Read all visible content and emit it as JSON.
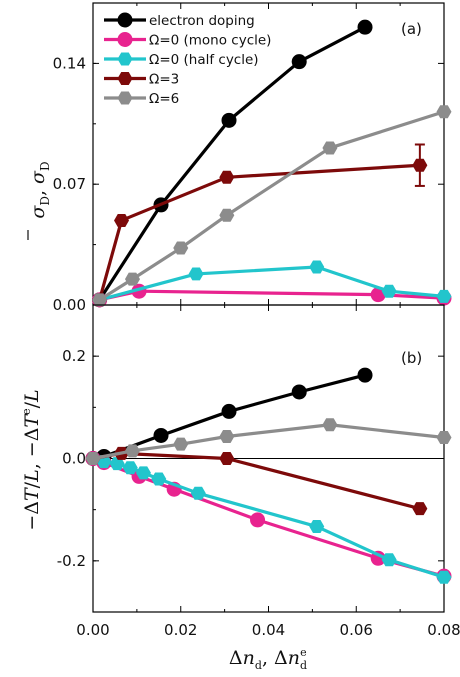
{
  "chart_data": [
    {
      "type": "line",
      "panel_label": "(a)",
      "xlim": [
        0,
        0.08
      ],
      "ylim": [
        0,
        0.175
      ],
      "yticks": [
        0.0,
        0.07,
        0.14
      ],
      "ytick_labels": [
        "0.00",
        "0.07",
        "0.14"
      ],
      "ylabel": "σ̄_D, σ_D",
      "legend_position": "top-left",
      "series": [
        {
          "name": "electron doping",
          "color": "#000000",
          "marker": "circle",
          "x": [
            0.0015,
            0.0155,
            0.031,
            0.047,
            0.062
          ],
          "y": [
            0.003,
            0.058,
            0.107,
            0.141,
            0.161
          ]
        },
        {
          "name": "Ω=0 (mono cycle)",
          "color": "#e8238f",
          "marker": "circle",
          "x": [
            0.0015,
            0.0105,
            0.065,
            0.08
          ],
          "y": [
            0.003,
            0.008,
            0.006,
            0.004
          ]
        },
        {
          "name": "Ω=0 (half cycle)",
          "color": "#22c5cc",
          "marker": "hexagon",
          "x": [
            0.0015,
            0.0235,
            0.051,
            0.0675,
            0.08
          ],
          "y": [
            0.003,
            0.018,
            0.022,
            0.008,
            0.005
          ]
        },
        {
          "name": "Ω=3",
          "color": "#7d0a0a",
          "marker": "hexagon",
          "x": [
            0.0015,
            0.0065,
            0.0305,
            0.0745
          ],
          "y": [
            0.003,
            0.049,
            0.074,
            0.081
          ],
          "yerr": [
            0,
            0,
            0,
            0.012
          ]
        },
        {
          "name": "Ω=6",
          "color": "#8c8c8c",
          "marker": "hexagon",
          "x": [
            0.0015,
            0.009,
            0.02,
            0.0305,
            0.054,
            0.08
          ],
          "y": [
            0.003,
            0.015,
            0.033,
            0.052,
            0.091,
            0.112
          ]
        }
      ]
    },
    {
      "type": "line",
      "panel_label": "(b)",
      "xlim": [
        0,
        0.08
      ],
      "ylim": [
        -0.3,
        0.3
      ],
      "yticks": [
        -0.2,
        0.0,
        0.2
      ],
      "ytick_labels": [
        "-0.2",
        "0.0",
        "0.2"
      ],
      "xticks": [
        0.0,
        0.02,
        0.04,
        0.06,
        0.08
      ],
      "xtick_labels": [
        "0.00",
        "0.02",
        "0.04",
        "0.06",
        "0.08"
      ],
      "ylabel": "−ΔT/L, −ΔT^e/L",
      "xlabel": "Δn_d, Δn_d^e",
      "zero_line": true,
      "series": [
        {
          "name": "electron doping",
          "color": "#000000",
          "marker": "circle",
          "x": [
            0.0,
            0.0025,
            0.0155,
            0.031,
            0.047,
            0.062
          ],
          "y": [
            0.0,
            0.004,
            0.045,
            0.092,
            0.13,
            0.163
          ]
        },
        {
          "name": "Ω=0 (mono cycle)",
          "color": "#e8238f",
          "marker": "circle",
          "x": [
            0.0,
            0.0025,
            0.0105,
            0.0185,
            0.0375,
            0.065,
            0.08
          ],
          "y": [
            0.0,
            -0.008,
            -0.035,
            -0.06,
            -0.12,
            -0.195,
            -0.23
          ]
        },
        {
          "name": "Ω=0 (half cycle)",
          "color": "#22c5cc",
          "marker": "hexagon",
          "x": [
            0.0,
            0.0025,
            0.0055,
            0.0085,
            0.0115,
            0.015,
            0.024,
            0.051,
            0.0675,
            0.08
          ],
          "y": [
            0.0,
            -0.006,
            -0.01,
            -0.018,
            -0.028,
            -0.04,
            -0.068,
            -0.133,
            -0.198,
            -0.232
          ]
        },
        {
          "name": "Ω=3",
          "color": "#7d0a0a",
          "marker": "hexagon",
          "x": [
            0.0,
            0.0065,
            0.0305,
            0.0745
          ],
          "y": [
            0.0,
            0.01,
            0.0,
            -0.098
          ]
        },
        {
          "name": "Ω=6",
          "color": "#8c8c8c",
          "marker": "hexagon",
          "x": [
            0.0,
            0.009,
            0.02,
            0.0305,
            0.054,
            0.08
          ],
          "y": [
            0.0,
            0.015,
            0.028,
            0.043,
            0.066,
            0.041
          ]
        }
      ]
    }
  ]
}
